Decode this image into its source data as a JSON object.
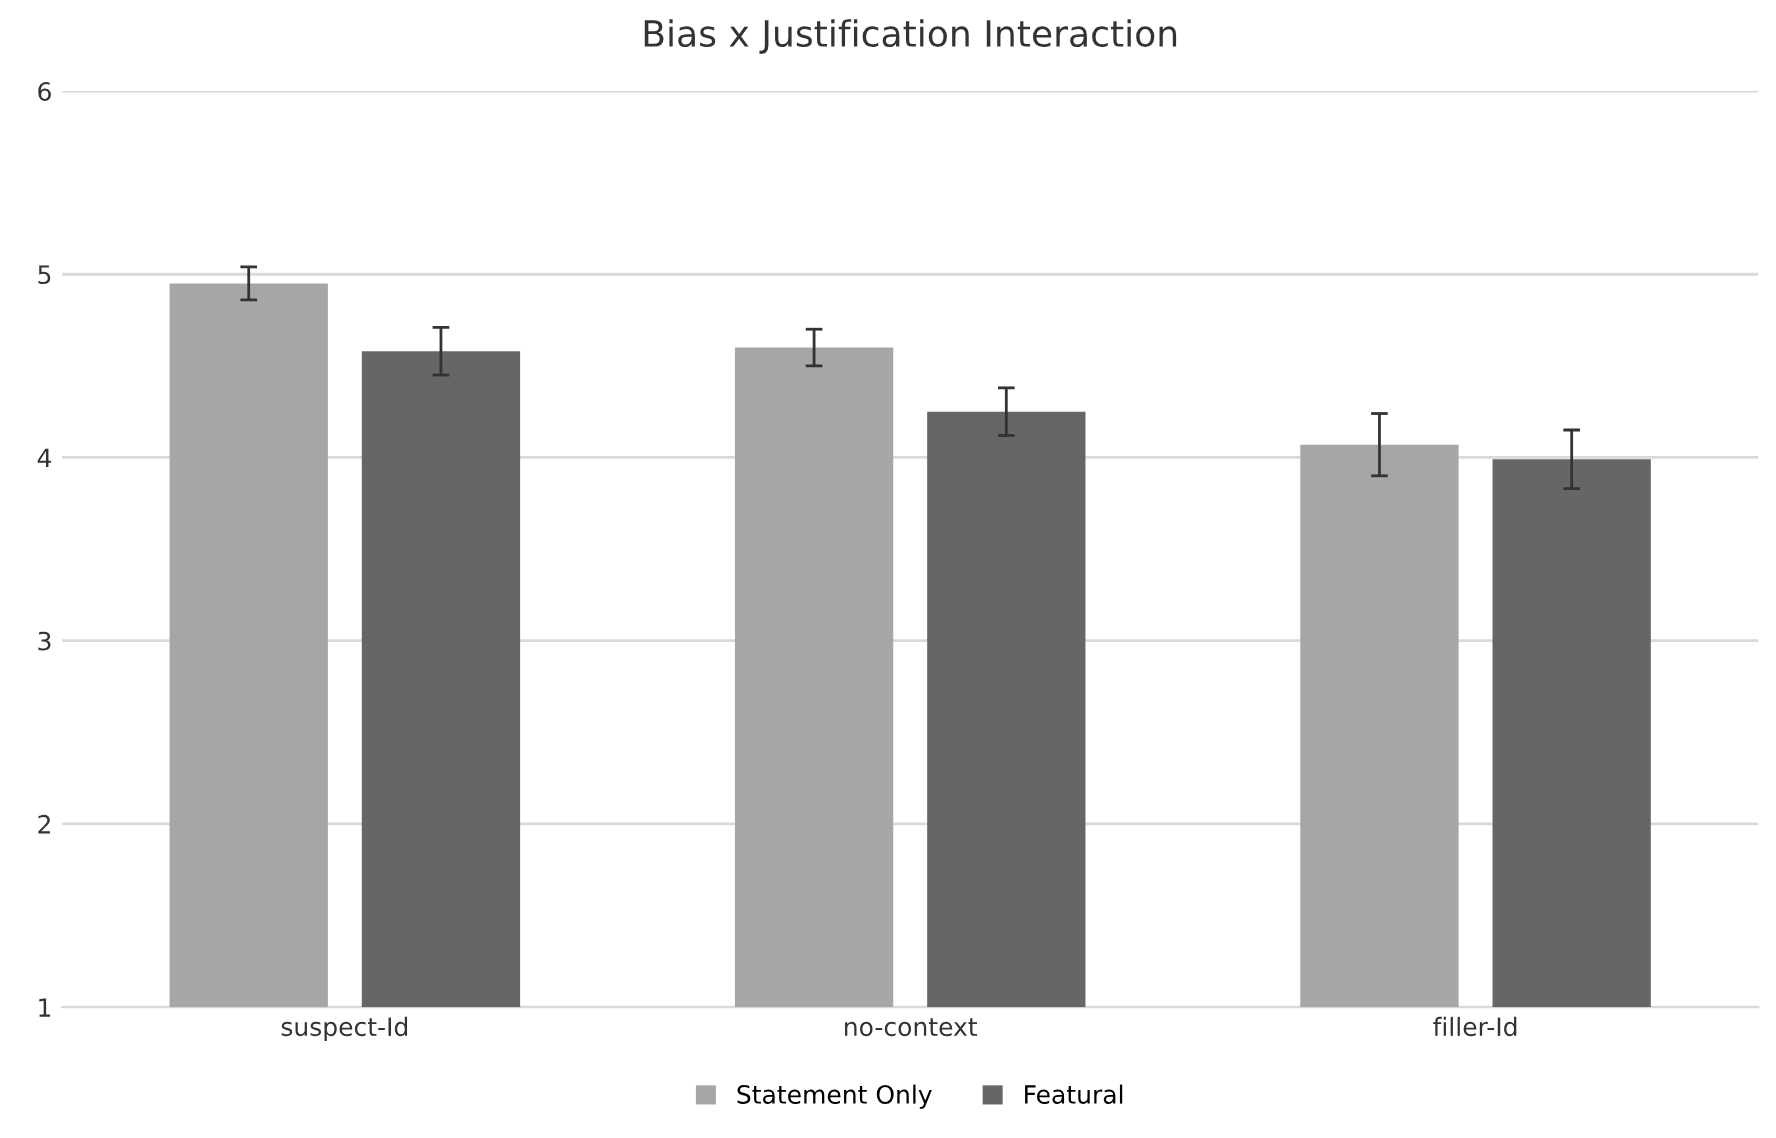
{
  "chart_data": {
    "type": "bar",
    "title": "Bias x Justification Interaction",
    "categories": [
      "suspect-Id",
      "no-context",
      "filler-Id"
    ],
    "series": [
      {
        "name": "Statement Only",
        "color": "#a6a6a6",
        "values": [
          4.95,
          4.6,
          4.07
        ],
        "errors": [
          0.09,
          0.1,
          0.17
        ]
      },
      {
        "name": "Featural",
        "color": "#666666",
        "values": [
          4.58,
          4.25,
          3.99
        ],
        "errors": [
          0.13,
          0.13,
          0.16
        ]
      }
    ],
    "ylim": [
      1,
      6
    ],
    "yticks": [
      1,
      2,
      3,
      4,
      5,
      6
    ],
    "grid": "y",
    "legend": "bottom"
  }
}
